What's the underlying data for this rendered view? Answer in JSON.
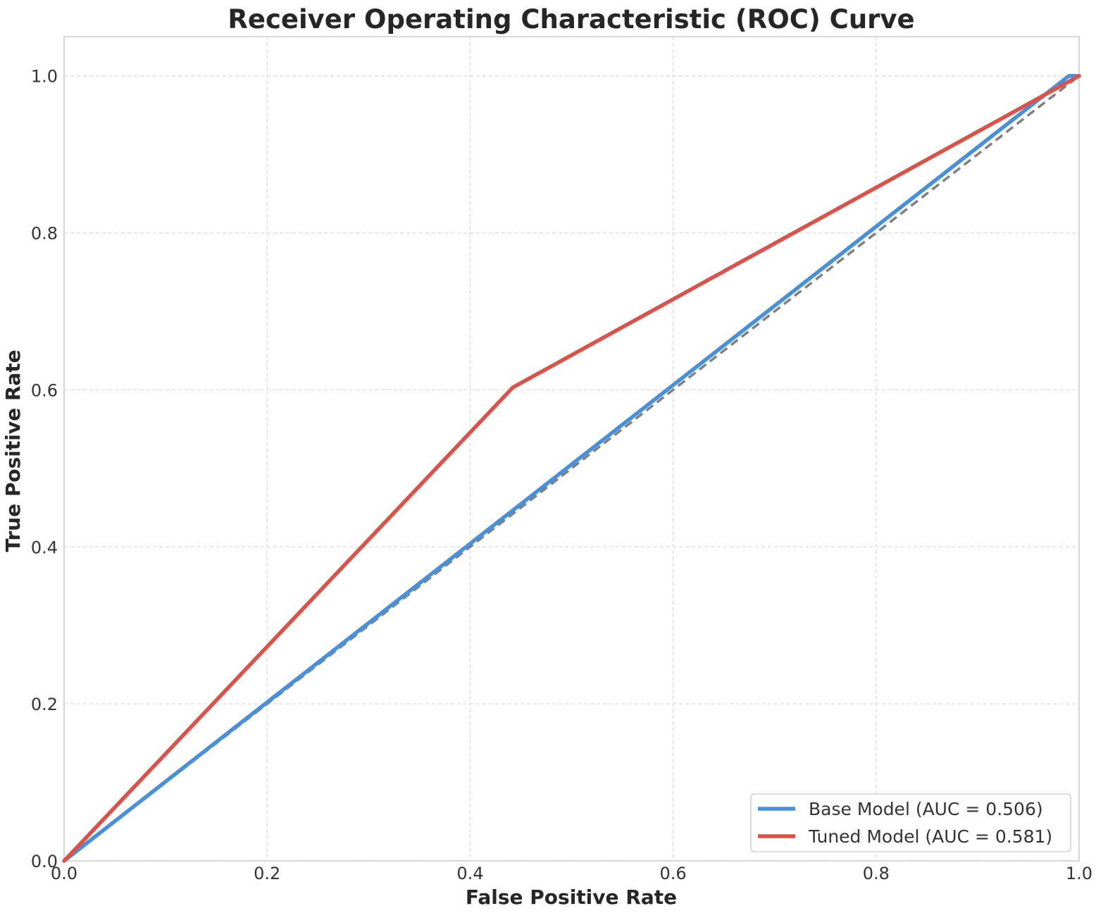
{
  "chart_data": {
    "type": "line",
    "title": "Receiver Operating Characteristic (ROC) Curve",
    "xlabel": "False Positive Rate",
    "ylabel": "True Positive Rate",
    "xlim": [
      0.0,
      1.0
    ],
    "ylim": [
      0.0,
      1.05
    ],
    "xticks": [
      "0.0",
      "0.2",
      "0.4",
      "0.6",
      "0.8",
      "1.0"
    ],
    "yticks": [
      "0.0",
      "0.2",
      "0.4",
      "0.6",
      "0.8",
      "1.0"
    ],
    "grid": true,
    "legend_position": "lower-right",
    "series": [
      {
        "name": "Base Model (AUC = 0.506)",
        "color": "#4a90d9",
        "x": [
          0.0,
          0.99,
          1.0
        ],
        "y": [
          0.0,
          1.0,
          1.0
        ]
      },
      {
        "name": "Tuned Model (AUC = 0.581)",
        "color": "#d9534a",
        "x": [
          0.0,
          0.442,
          1.0
        ],
        "y": [
          0.0,
          0.603,
          1.0
        ]
      }
    ],
    "reference_line": {
      "x": [
        0.0,
        1.0
      ],
      "y": [
        0.0,
        1.0
      ],
      "color": "#808080",
      "style": "dashed"
    }
  }
}
